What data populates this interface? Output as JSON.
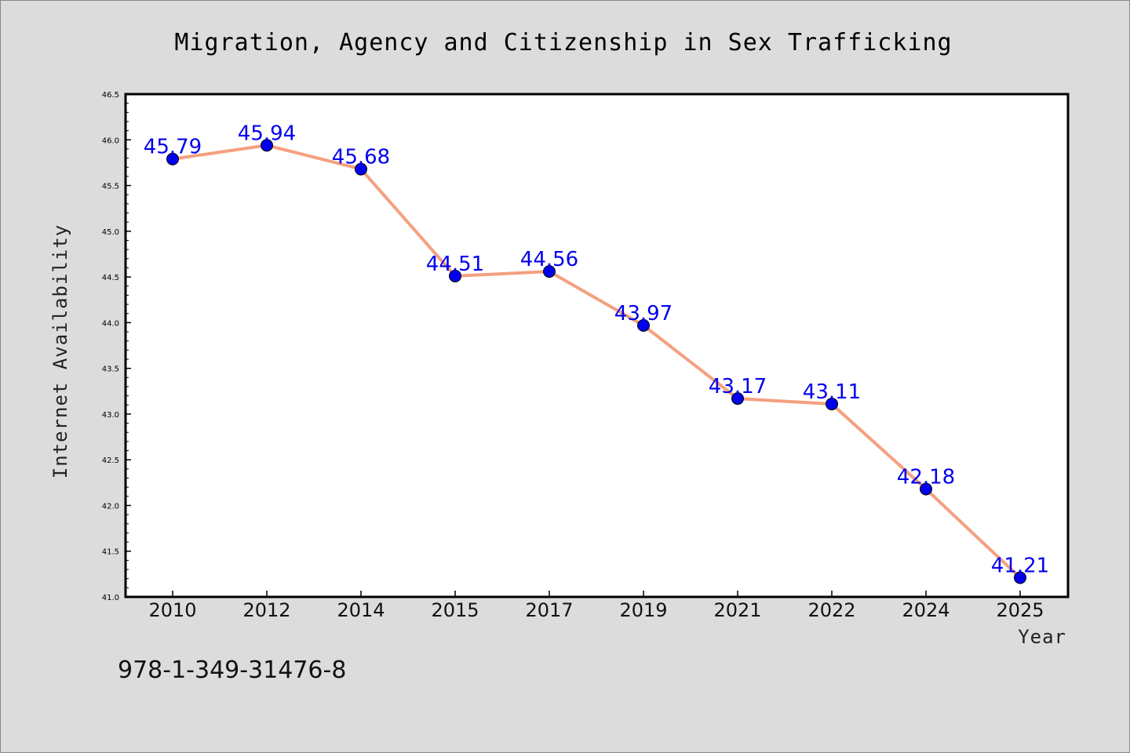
{
  "chart_data": {
    "type": "line",
    "title": "Migration, Agency and Citizenship in Sex Trafficking",
    "xlabel": "Year",
    "ylabel": "Internet Availability",
    "categories": [
      "2010",
      "2012",
      "2014",
      "2015",
      "2017",
      "2019",
      "2021",
      "2022",
      "2024",
      "2025"
    ],
    "series": [
      {
        "values": [
          45.79,
          45.94,
          45.68,
          44.51,
          44.56,
          43.97,
          43.17,
          43.11,
          42.18,
          41.21
        ],
        "labels": [
          "45.79",
          "45.94",
          "45.68",
          "44.51",
          "44.56",
          "43.97",
          "43.17",
          "43.11",
          "42.18",
          "41.21"
        ],
        "line_color": "#f4a07f",
        "marker_color": "#0000ee",
        "label_color": "#0000ee"
      }
    ],
    "ylim": [
      41.0,
      46.5
    ],
    "yticks": [
      "41.0",
      "41.5",
      "42.0",
      "42.5",
      "43.0",
      "43.5",
      "44.0",
      "44.5",
      "45.0",
      "45.5",
      "46.0",
      "46.5"
    ],
    "grid": false,
    "background": "#dcdcdc",
    "plot_background": "#ffffff"
  },
  "footer": {
    "isbn": "978-1-349-31476-8"
  }
}
